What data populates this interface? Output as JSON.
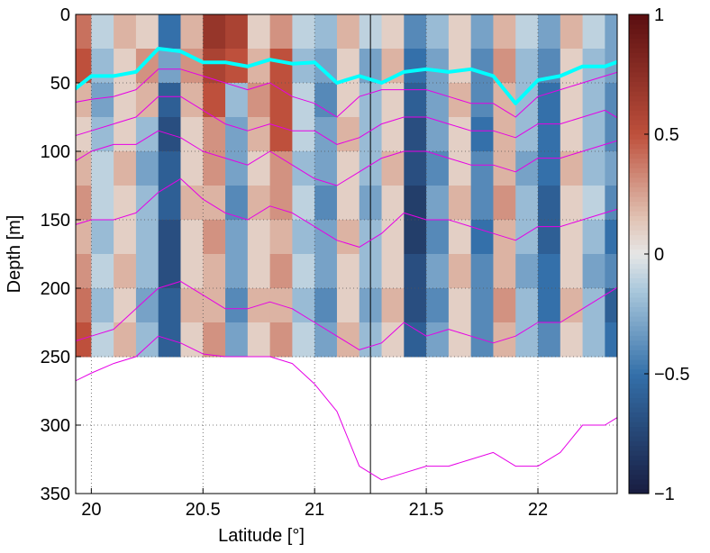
{
  "chart_data": {
    "type": "heatmap",
    "xlabel": "Latitude [°]",
    "ylabel": "Depth [m]",
    "xlim": [
      19.93,
      22.355
    ],
    "ylim": [
      0,
      350
    ],
    "y_reversed": true,
    "xticks": [
      20,
      20.5,
      21,
      21.5,
      22
    ],
    "yticks": [
      0,
      50,
      100,
      150,
      200,
      250,
      300,
      350
    ],
    "grid": true,
    "x": [
      19.95,
      20.05,
      20.15,
      20.25,
      20.35,
      20.45,
      20.55,
      20.65,
      20.75,
      20.85,
      20.95,
      21.05,
      21.15,
      21.25,
      21.35,
      21.45,
      21.55,
      21.65,
      21.75,
      21.85,
      21.95,
      22.05,
      22.15,
      22.25,
      22.35
    ],
    "cell_width": 0.1,
    "y": [
      12.5,
      37.5,
      62.5,
      87.5,
      112.5,
      137.5,
      162.5,
      187.5,
      212.5,
      237.5
    ],
    "cell_height": 25,
    "z": [
      [
        0.4,
        -0.1,
        0.2,
        0.1,
        -0.5,
        0.2,
        0.7,
        0.6,
        0.1,
        0.3,
        -0.1,
        -0.2,
        0.2,
        -0.1,
        0.1,
        -0.4,
        -0.2,
        0.1,
        -0.3,
        0.2,
        -0.1,
        -0.3,
        0.2,
        -0.1,
        -0.3
      ],
      [
        0.5,
        -0.2,
        0.1,
        0.3,
        -0.3,
        0.3,
        0.6,
        0.5,
        0.2,
        0.5,
        -0.2,
        -0.3,
        0.1,
        -0.3,
        0.2,
        -0.5,
        -0.3,
        0.1,
        -0.4,
        0.3,
        -0.2,
        -0.4,
        0.1,
        -0.2,
        -0.3
      ],
      [
        0.2,
        -0.3,
        0.1,
        0.2,
        -0.6,
        0.2,
        0.5,
        -0.2,
        0.3,
        0.5,
        -0.1,
        -0.4,
        0.1,
        -0.2,
        0.1,
        -0.6,
        -0.3,
        0.2,
        -0.4,
        0.2,
        -0.2,
        -0.5,
        0.1,
        -0.2,
        -0.4
      ],
      [
        0.1,
        -0.2,
        0.1,
        -0.2,
        -0.7,
        0.1,
        0.3,
        -0.3,
        0.2,
        0.5,
        -0.1,
        -0.3,
        0.2,
        -0.2,
        0.1,
        -0.7,
        -0.3,
        0.1,
        -0.5,
        0.2,
        -0.2,
        -0.5,
        0.1,
        -0.2,
        -0.4
      ],
      [
        0.2,
        -0.1,
        0.2,
        -0.3,
        -0.6,
        0.1,
        0.3,
        -0.3,
        0.1,
        0.3,
        -0.2,
        -0.3,
        0.1,
        -0.2,
        0.2,
        -0.7,
        -0.4,
        0.1,
        -0.4,
        0.2,
        -0.3,
        -0.5,
        0.2,
        -0.2,
        -0.3
      ],
      [
        0.3,
        -0.1,
        0.1,
        -0.2,
        -0.6,
        0.2,
        0.2,
        -0.4,
        0.2,
        0.3,
        -0.1,
        -0.4,
        0.1,
        -0.3,
        0.1,
        -0.8,
        -0.3,
        0.2,
        -0.4,
        0.3,
        -0.2,
        -0.6,
        0.1,
        -0.1,
        -0.4
      ],
      [
        0.2,
        -0.2,
        0.1,
        -0.2,
        -0.7,
        0.1,
        0.3,
        -0.3,
        0.1,
        0.2,
        -0.2,
        -0.3,
        0.2,
        -0.2,
        0.1,
        -0.8,
        -0.4,
        0.1,
        -0.5,
        0.2,
        -0.2,
        -0.6,
        0.1,
        -0.2,
        -0.5
      ],
      [
        0.3,
        -0.1,
        0.2,
        -0.2,
        -0.7,
        0.1,
        0.2,
        -0.3,
        0.1,
        0.3,
        -0.1,
        -0.3,
        0.1,
        -0.2,
        0.1,
        -0.7,
        -0.3,
        0.2,
        -0.4,
        0.2,
        -0.3,
        -0.5,
        0.1,
        -0.3,
        -0.4
      ],
      [
        0.4,
        -0.2,
        0.1,
        -0.3,
        -0.6,
        0.2,
        0.2,
        -0.4,
        0.2,
        0.2,
        -0.2,
        -0.4,
        0.1,
        -0.3,
        0.2,
        -0.7,
        -0.4,
        0.1,
        -0.4,
        0.3,
        -0.2,
        -0.5,
        0.2,
        -0.2,
        -0.6
      ],
      [
        0.5,
        -0.1,
        0.2,
        -0.2,
        -0.6,
        0.1,
        0.3,
        -0.3,
        0.1,
        0.3,
        -0.1,
        -0.3,
        0.2,
        -0.2,
        0.1,
        -0.6,
        -0.3,
        0.1,
        -0.4,
        0.2,
        -0.2,
        -0.4,
        0.1,
        -0.2,
        -0.5
      ]
    ],
    "clim": [
      -1,
      1
    ],
    "cticks": [
      {
        "value": -1,
        "label": "−1"
      },
      {
        "value": -0.5,
        "label": "−0.5"
      },
      0,
      0.5,
      1
    ],
    "line_x": [
      19.9,
      20.0,
      20.1,
      20.2,
      20.3,
      20.4,
      20.5,
      20.6,
      20.7,
      20.8,
      20.9,
      21.0,
      21.1,
      21.2,
      21.3,
      21.4,
      21.5,
      21.6,
      21.7,
      21.8,
      21.9,
      22.0,
      22.1,
      22.2,
      22.3,
      22.4
    ],
    "lines": [
      {
        "color": "#e600e6",
        "width": 1,
        "values": [
          65,
          62,
          60,
          55,
          40,
          40,
          45,
          50,
          55,
          50,
          60,
          65,
          75,
          60,
          55,
          55,
          55,
          60,
          65,
          65,
          75,
          60,
          55,
          50,
          45,
          40
        ]
      },
      {
        "color": "#e600e6",
        "width": 1,
        "values": [
          90,
          85,
          80,
          75,
          60,
          60,
          70,
          80,
          85,
          80,
          85,
          85,
          95,
          90,
          80,
          75,
          75,
          80,
          85,
          85,
          90,
          80,
          80,
          75,
          70,
          80
        ]
      },
      {
        "color": "#e600e6",
        "width": 1,
        "values": [
          110,
          100,
          95,
          95,
          85,
          90,
          100,
          105,
          110,
          100,
          110,
          120,
          125,
          115,
          105,
          100,
          100,
          105,
          110,
          110,
          115,
          105,
          105,
          100,
          95,
          90
        ]
      },
      {
        "color": "#e600e6",
        "width": 1,
        "values": [
          155,
          150,
          150,
          145,
          130,
          120,
          135,
          145,
          150,
          140,
          145,
          155,
          165,
          170,
          160,
          145,
          150,
          150,
          155,
          160,
          165,
          155,
          155,
          150,
          145,
          140
        ]
      },
      {
        "color": "#e600e6",
        "width": 1,
        "values": [
          240,
          235,
          230,
          215,
          200,
          195,
          205,
          215,
          215,
          210,
          215,
          225,
          235,
          245,
          240,
          225,
          235,
          230,
          235,
          240,
          235,
          225,
          225,
          215,
          205,
          195
        ]
      },
      {
        "color": "#e600e6",
        "width": 1,
        "values": [
          270,
          262,
          255,
          250,
          235,
          240,
          248,
          250,
          250,
          250,
          255,
          270,
          290,
          330,
          340,
          335,
          330,
          330,
          325,
          320,
          330,
          330,
          320,
          300,
          300,
          290
        ]
      },
      {
        "color": "#00ffff",
        "width": 4,
        "values": [
          58,
          45,
          45,
          42,
          25,
          27,
          35,
          35,
          38,
          33,
          36,
          35,
          50,
          45,
          50,
          42,
          40,
          42,
          40,
          45,
          65,
          48,
          45,
          38,
          38,
          32
        ]
      }
    ],
    "vline": 21.25
  }
}
